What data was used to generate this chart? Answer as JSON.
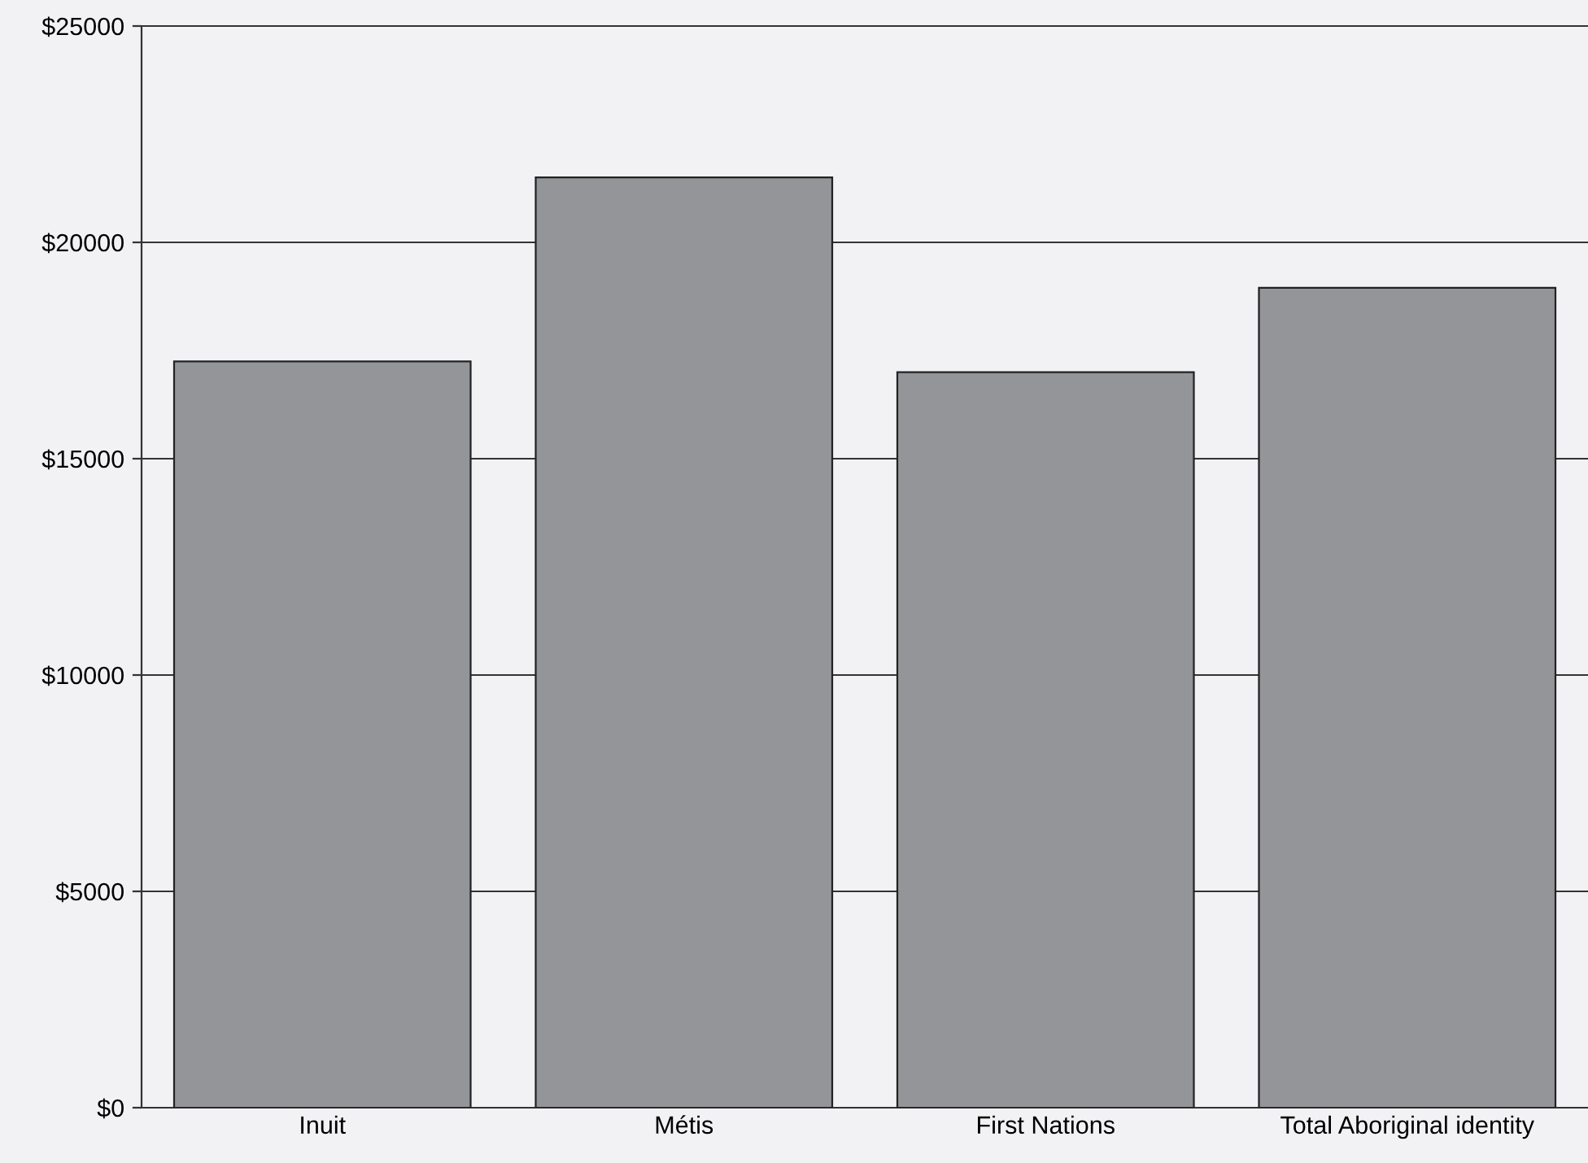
{
  "chart_data": {
    "type": "bar",
    "categories": [
      "Inuit",
      "Métis",
      "First Nations",
      "Total Aboriginal identity"
    ],
    "values": [
      17250,
      21500,
      17000,
      18950
    ],
    "color": "#939598",
    "ylim": [
      0,
      25000
    ],
    "yticks": [
      {
        "value": 0,
        "label": "$0"
      },
      {
        "value": 5000,
        "label": "$5000"
      },
      {
        "value": 10000,
        "label": "$10000"
      },
      {
        "value": 15000,
        "label": "$15000"
      },
      {
        "value": 20000,
        "label": "$20000"
      },
      {
        "value": 25000,
        "label": "$25000"
      }
    ],
    "grid": "y"
  }
}
